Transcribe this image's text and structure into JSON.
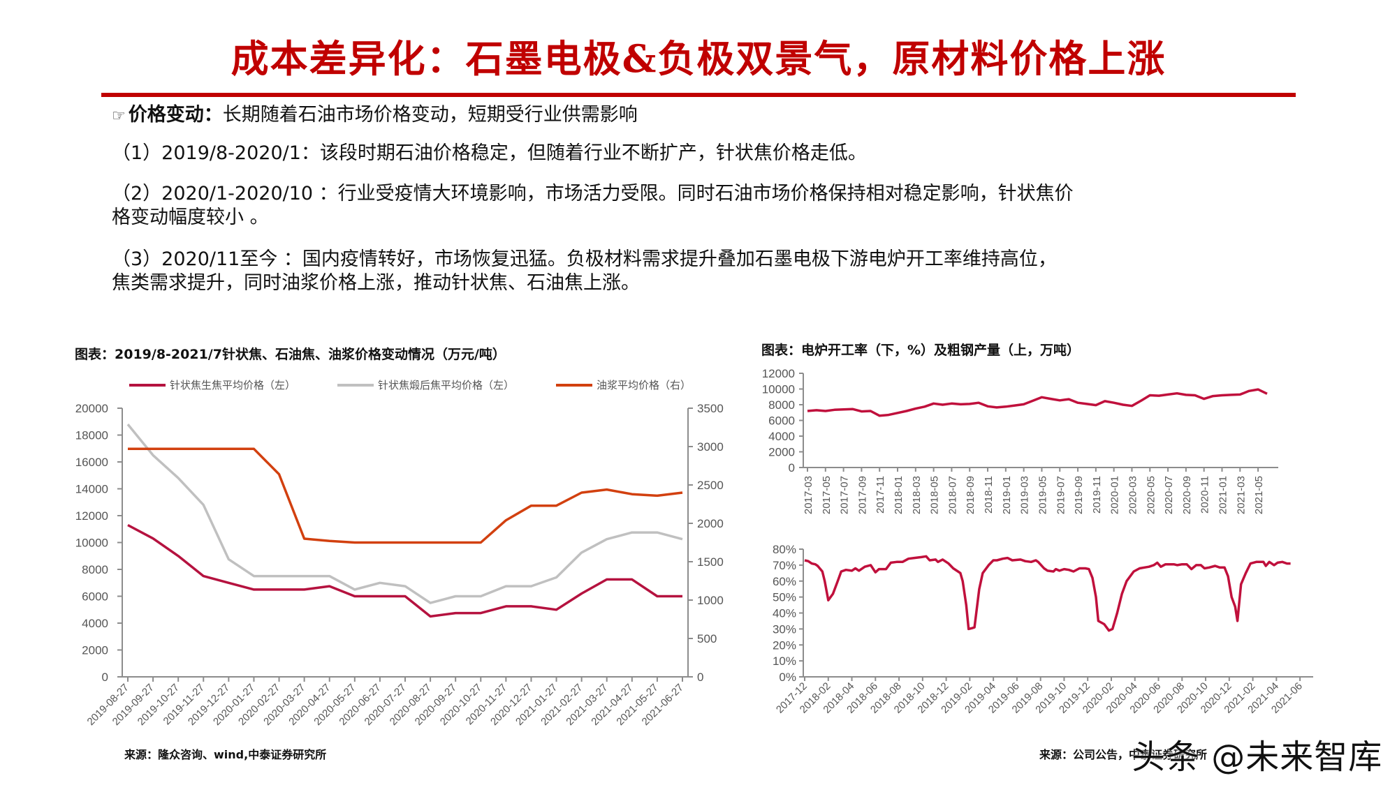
{
  "header": {
    "title": "成本差异化：石墨电极&负极双景气，原材料价格上涨"
  },
  "body": {
    "bullet_icon": "pointing-hand-icon",
    "heading_bold": "价格变动：",
    "heading_rest": "长期随着石油市场价格变动，短期受行业供需影响",
    "paragraphs": [
      "（1）2019/8-2020/1：该段时期石油价格稳定，但随着行业不断扩产，针状焦价格走低。",
      "（2）2020/1-2020/10 ：行业受疫情大环境影响，市场活力受限。同时石油市场价格保持相对稳定影响，针状焦价",
      "格变动幅度较小 。",
      "（3）2020/11至今 ：国内疫情转好，市场恢复迅猛。负极材料需求提升叠加石墨电极下游电炉开工率维持高位，",
      "焦类需求提升，同时油浆价格上涨，推动针状焦、石油焦上涨。"
    ]
  },
  "left_chart": {
    "title": "图表：2019/8-2021/7针状焦、石油焦、油浆价格变动情况（万元/吨）",
    "source": "来源：隆众咨询、wind,中泰证券研究所"
  },
  "right_chart": {
    "title": "图表：电炉开工率（下，%）及粗钢产量（上，万吨）",
    "source": "来源：公司公告，中泰证券研究所"
  },
  "watermark": "头条 @未来智库",
  "chart_data": [
    {
      "type": "line",
      "title": "图表：2019/8-2021/7针状焦、石油焦、油浆价格变动情况（万元/吨）",
      "xlabel": "",
      "ylabel": "",
      "ylim": [
        0,
        20000
      ],
      "y2lim": [
        0,
        3500
      ],
      "yticks": [
        0,
        2000,
        4000,
        6000,
        8000,
        10000,
        12000,
        14000,
        16000,
        18000,
        20000
      ],
      "y2ticks": [
        0,
        500,
        1000,
        1500,
        2000,
        2500,
        3000,
        3500
      ],
      "grid": false,
      "legend_position": "top",
      "x": [
        "2019-08-27",
        "2019-09-27",
        "2019-10-27",
        "2019-11-27",
        "2019-12-27",
        "2020-01-27",
        "2020-02-27",
        "2020-03-27",
        "2020-04-27",
        "2020-05-27",
        "2020-06-27",
        "2020-07-27",
        "2020-08-27",
        "2020-09-27",
        "2020-10-27",
        "2020-11-27",
        "2020-12-27",
        "2021-01-27",
        "2021-02-27",
        "2021-03-27",
        "2021-04-27",
        "2021-05-27",
        "2021-06-27"
      ],
      "series": [
        {
          "name": "针状焦生焦平均价格（左）",
          "axis": "left",
          "color": "#b5123f",
          "values": [
            11300,
            10300,
            9000,
            7500,
            7000,
            6500,
            6500,
            6500,
            6750,
            6000,
            6000,
            6000,
            4500,
            4750,
            4750,
            5250,
            5250,
            5000,
            6200,
            7250,
            7250,
            6000,
            6000
          ]
        },
        {
          "name": "针状焦煅后焦平均价格（左）",
          "axis": "left",
          "color": "#c0c0c0",
          "values": [
            18800,
            16500,
            14800,
            12800,
            8750,
            7500,
            7500,
            7500,
            7500,
            6500,
            7000,
            6750,
            5500,
            6000,
            6000,
            6750,
            6750,
            7400,
            9250,
            10250,
            10750,
            10750,
            10250
          ]
        },
        {
          "name": "油浆平均价格（右）",
          "axis": "right",
          "color": "#d2400f",
          "values": [
            2970,
            2970,
            2970,
            2970,
            2970,
            2970,
            2640,
            1800,
            1770,
            1750,
            1750,
            1750,
            1750,
            1750,
            1750,
            2040,
            2230,
            2230,
            2400,
            2440,
            2380,
            2360,
            2400
          ]
        }
      ]
    },
    {
      "type": "line",
      "title": "粗钢产量（上，万吨）",
      "ylim": [
        0,
        12000
      ],
      "yticks": [
        0,
        2000,
        4000,
        6000,
        8000,
        10000,
        12000
      ],
      "grid": false,
      "x": [
        "2017-03",
        "2017-04",
        "2017-05",
        "2017-06",
        "2017-07",
        "2017-08",
        "2017-09",
        "2017-10",
        "2017-11",
        "2017-12",
        "2018-01",
        "2018-02",
        "2018-03",
        "2018-04",
        "2018-05",
        "2018-06",
        "2018-07",
        "2018-08",
        "2018-09",
        "2018-10",
        "2018-11",
        "2018-12",
        "2019-01",
        "2019-02",
        "2019-03",
        "2019-04",
        "2019-05",
        "2019-06",
        "2019-07",
        "2019-08",
        "2019-09",
        "2019-10",
        "2019-11",
        "2019-12",
        "2020-01",
        "2020-02",
        "2020-03",
        "2020-04",
        "2020-05",
        "2020-06",
        "2020-07",
        "2020-08",
        "2020-09",
        "2020-10",
        "2020-11",
        "2020-12",
        "2021-01",
        "2021-02",
        "2021-03",
        "2021-04",
        "2021-05",
        "2021-06"
      ],
      "xtick_labels": [
        "2017-03",
        "2017-05",
        "2017-07",
        "2017-09",
        "2017-11",
        "2018-01",
        "2018-03",
        "2018-05",
        "2018-07",
        "2018-09",
        "2018-11",
        "2019-01",
        "2019-03",
        "2019-05",
        "2019-07",
        "2019-09",
        "2019-11",
        "2020-01",
        "2020-03",
        "2020-05",
        "2020-07",
        "2020-09",
        "2020-11",
        "2021-01",
        "2021-03",
        "2021-05"
      ],
      "series": [
        {
          "name": "粗钢产量",
          "color": "#c0103c",
          "values": [
            7200,
            7300,
            7200,
            7350,
            7400,
            7450,
            7150,
            7200,
            6600,
            6700,
            6950,
            7200,
            7500,
            7750,
            8150,
            8000,
            8150,
            8050,
            8100,
            8250,
            7800,
            7650,
            7750,
            7900,
            8050,
            8500,
            8950,
            8750,
            8550,
            8700,
            8250,
            8100,
            7950,
            8450,
            8250,
            8000,
            7850,
            8500,
            9200,
            9150,
            9300,
            9450,
            9250,
            9200,
            8750,
            9100,
            9200,
            9250,
            9300,
            9750,
            9950,
            9400
          ]
        }
      ]
    },
    {
      "type": "line",
      "title": "电炉开工率（下，%）",
      "ylim": [
        0,
        80
      ],
      "yticks": [
        "0%",
        "10%",
        "20%",
        "30%",
        "40%",
        "50%",
        "60%",
        "70%",
        "80%"
      ],
      "grid": false,
      "xtick_labels": [
        "2017-12",
        "2018-02",
        "2018-04",
        "2018-06",
        "2018-08",
        "2018-10",
        "2018-12",
        "2019-02",
        "2019-04",
        "2019-06",
        "2019-08",
        "2019-10",
        "2019-12",
        "2020-02",
        "2020-04",
        "2020-06",
        "2020-08",
        "2020-10",
        "2020-12",
        "2021-02",
        "2021-04",
        "2021-06"
      ],
      "series": [
        {
          "name": "电炉开工率",
          "color": "#c0103c",
          "points_month_value": [
            [
              0,
              73
            ],
            [
              0.3,
              72.5
            ],
            [
              0.6,
              71
            ],
            [
              0.9,
              70.5
            ],
            [
              1.1,
              69.5
            ],
            [
              1.5,
              66
            ],
            [
              1.7,
              60
            ],
            [
              2.0,
              48
            ],
            [
              2.4,
              52
            ],
            [
              2.8,
              60
            ],
            [
              3.1,
              66
            ],
            [
              3.5,
              67
            ],
            [
              4.0,
              66.5
            ],
            [
              4.3,
              68
            ],
            [
              4.6,
              66.5
            ],
            [
              5.1,
              69
            ],
            [
              5.6,
              70
            ],
            [
              6.0,
              65.5
            ],
            [
              6.3,
              67.5
            ],
            [
              6.9,
              67.5
            ],
            [
              7.3,
              71.5
            ],
            [
              7.8,
              72
            ],
            [
              8.3,
              72
            ],
            [
              8.8,
              74
            ],
            [
              9.3,
              74.5
            ],
            [
              9.9,
              75
            ],
            [
              10.3,
              75.5
            ],
            [
              10.6,
              73
            ],
            [
              11.1,
              73.5
            ],
            [
              11.3,
              72
            ],
            [
              11.7,
              73.5
            ],
            [
              12.2,
              71
            ],
            [
              12.6,
              68
            ],
            [
              13.0,
              66
            ],
            [
              13.2,
              65
            ],
            [
              13.4,
              60
            ],
            [
              13.7,
              45
            ],
            [
              13.9,
              30
            ],
            [
              14.2,
              30.5
            ],
            [
              14.4,
              31
            ],
            [
              14.8,
              55
            ],
            [
              15.1,
              65
            ],
            [
              15.6,
              70
            ],
            [
              16.0,
              73
            ],
            [
              16.3,
              73
            ],
            [
              16.8,
              74
            ],
            [
              17.2,
              74.5
            ],
            [
              17.6,
              73
            ],
            [
              18.3,
              73.5
            ],
            [
              18.7,
              72.5
            ],
            [
              19.2,
              72
            ],
            [
              19.6,
              73
            ],
            [
              19.8,
              72
            ],
            [
              20.3,
              68
            ],
            [
              20.6,
              66.5
            ],
            [
              21.1,
              66
            ],
            [
              21.3,
              67.5
            ],
            [
              21.6,
              66.5
            ],
            [
              22.0,
              67.5
            ],
            [
              22.4,
              67
            ],
            [
              22.8,
              66
            ],
            [
              23.3,
              68
            ],
            [
              23.8,
              68
            ],
            [
              24.1,
              67.5
            ],
            [
              24.4,
              62
            ],
            [
              24.7,
              50
            ],
            [
              24.9,
              35
            ],
            [
              25.4,
              33
            ],
            [
              25.8,
              29
            ],
            [
              26.1,
              30
            ],
            [
              26.5,
              40
            ],
            [
              26.9,
              52
            ],
            [
              27.3,
              60
            ],
            [
              27.9,
              66
            ],
            [
              28.4,
              68
            ],
            [
              28.8,
              68.5
            ],
            [
              29.2,
              69
            ],
            [
              29.6,
              70
            ],
            [
              29.9,
              71.5
            ],
            [
              30.2,
              69
            ],
            [
              30.6,
              70.5
            ],
            [
              31.3,
              70.5
            ],
            [
              31.6,
              70
            ],
            [
              32.0,
              70.5
            ],
            [
              32.4,
              70.5
            ],
            [
              32.8,
              67.5
            ],
            [
              33.2,
              70
            ],
            [
              33.6,
              70
            ],
            [
              33.9,
              68
            ],
            [
              34.3,
              68.5
            ],
            [
              34.8,
              69.5
            ],
            [
              35.2,
              68.5
            ],
            [
              35.6,
              68.5
            ],
            [
              35.9,
              63
            ],
            [
              36.2,
              50
            ],
            [
              36.5,
              44
            ],
            [
              36.7,
              35
            ],
            [
              37.0,
              58
            ],
            [
              37.4,
              65
            ],
            [
              37.8,
              71
            ],
            [
              38.3,
              72
            ],
            [
              38.9,
              72
            ],
            [
              39.1,
              69.5
            ],
            [
              39.4,
              72
            ],
            [
              39.8,
              70
            ],
            [
              40.1,
              71.5
            ],
            [
              40.5,
              72
            ],
            [
              40.9,
              71
            ],
            [
              41.2,
              71
            ]
          ]
        }
      ]
    }
  ]
}
